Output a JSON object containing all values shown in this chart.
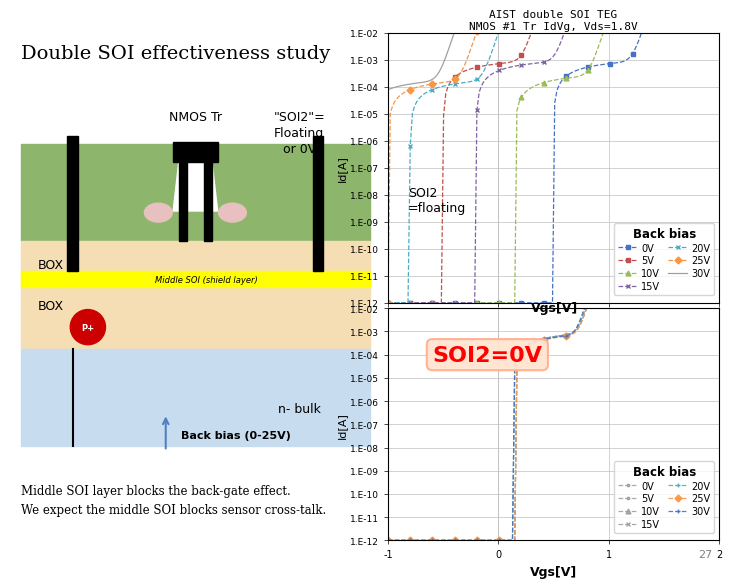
{
  "title_main": "Double SOI effectiveness study",
  "title_plot": "AIST double SOI TEG\nNMOS #1 Tr IdVg, Vds=1.8V",
  "xlabel": "Vgs[V]",
  "ylabel": "Id[A]",
  "ytick_labels": [
    "1.E-12",
    "1.E-11",
    "1.E-10",
    "1.E-09",
    "1.E-08",
    "1.E-07",
    "1.E-06",
    "1.E-05",
    "1.E-04",
    "1.E-03",
    "1.E-02"
  ],
  "xtick_labels": [
    "-1",
    "0",
    "1",
    "2"
  ],
  "xtick_vals": [
    -1,
    0,
    1,
    2
  ],
  "legend_title": "Back bias",
  "labels": [
    "0V",
    "5V",
    "10V",
    "15V",
    "20V",
    "25V",
    "30V"
  ],
  "colors_top": [
    "#4472C4",
    "#C0504D",
    "#9BBB59",
    "#8064A2",
    "#4BACC6",
    "#F79646",
    "#A0A0A0"
  ],
  "colors_bot": [
    "#A0A0A0",
    "#A0A0A0",
    "#A0A0A0",
    "#A0A0A0",
    "#4BACC6",
    "#F79646",
    "#4472C4"
  ],
  "bg_color": "#FFFFFF",
  "grid_color": "#C0C0C0",
  "label1": "SOI2\n=floating",
  "label2": "SOI2=0V",
  "note": "Middle SOI layer blocks the back-gate effect.\nWe expect the middle SOI blocks sensor cross-talk.",
  "page_num": "27",
  "nmos_label": "NMOS Tr",
  "soi2_label": "\"SOI2\"=\nFloating\nor 0V",
  "box_label1": "BOX",
  "box_label2": "BOX",
  "middle_soi_label": "Middle SOI (shield layer)",
  "nbulk_label": "n- bulk",
  "backbias_label": "Back bias (0-25V)",
  "green_color": "#8DB56C",
  "beige_color": "#F5DEB3",
  "blue_color": "#C8DCF0",
  "yellow_color": "#FFFF00",
  "pink_color": "#E8C0C0",
  "red_color": "#CC0000"
}
